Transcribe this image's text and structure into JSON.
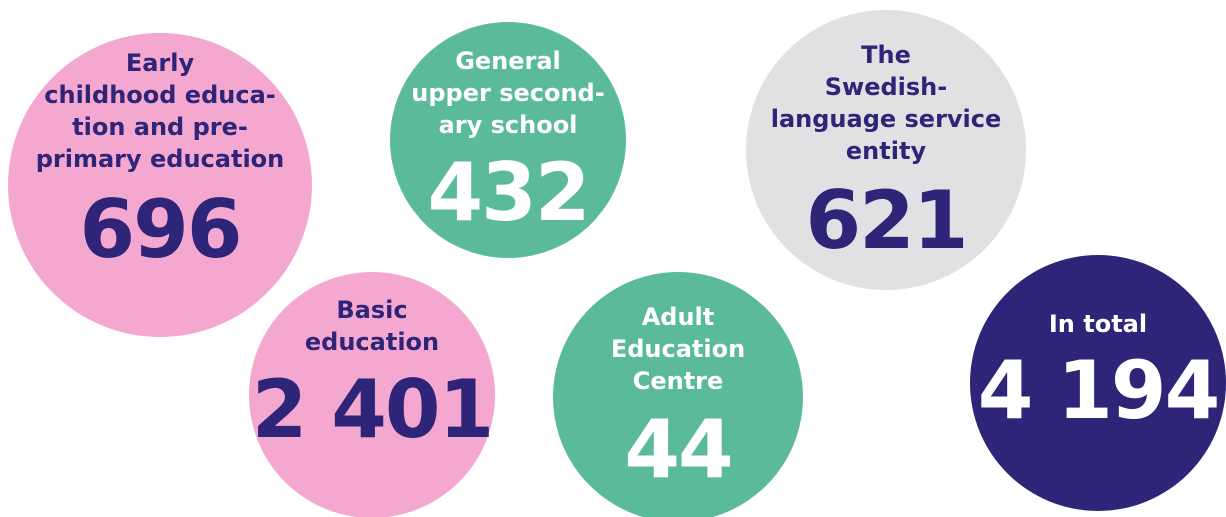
{
  "bubbles": [
    {
      "label": [
        "Early",
        "childhood educa-",
        "tion and pre-",
        "primary education"
      ],
      "value": "696"
    },
    {
      "label": [
        "General",
        "upper second-",
        "ary school"
      ],
      "value": "432"
    },
    {
      "label": [
        "The",
        "Swedish-",
        "language service",
        "entity"
      ],
      "value": "621"
    },
    {
      "label": [
        "Basic",
        "education"
      ],
      "value": "2 401"
    },
    {
      "label": [
        "Adult",
        "Education",
        "Centre"
      ],
      "value": "44"
    },
    {
      "label": [
        "In total"
      ],
      "value": "4 194"
    }
  ]
}
